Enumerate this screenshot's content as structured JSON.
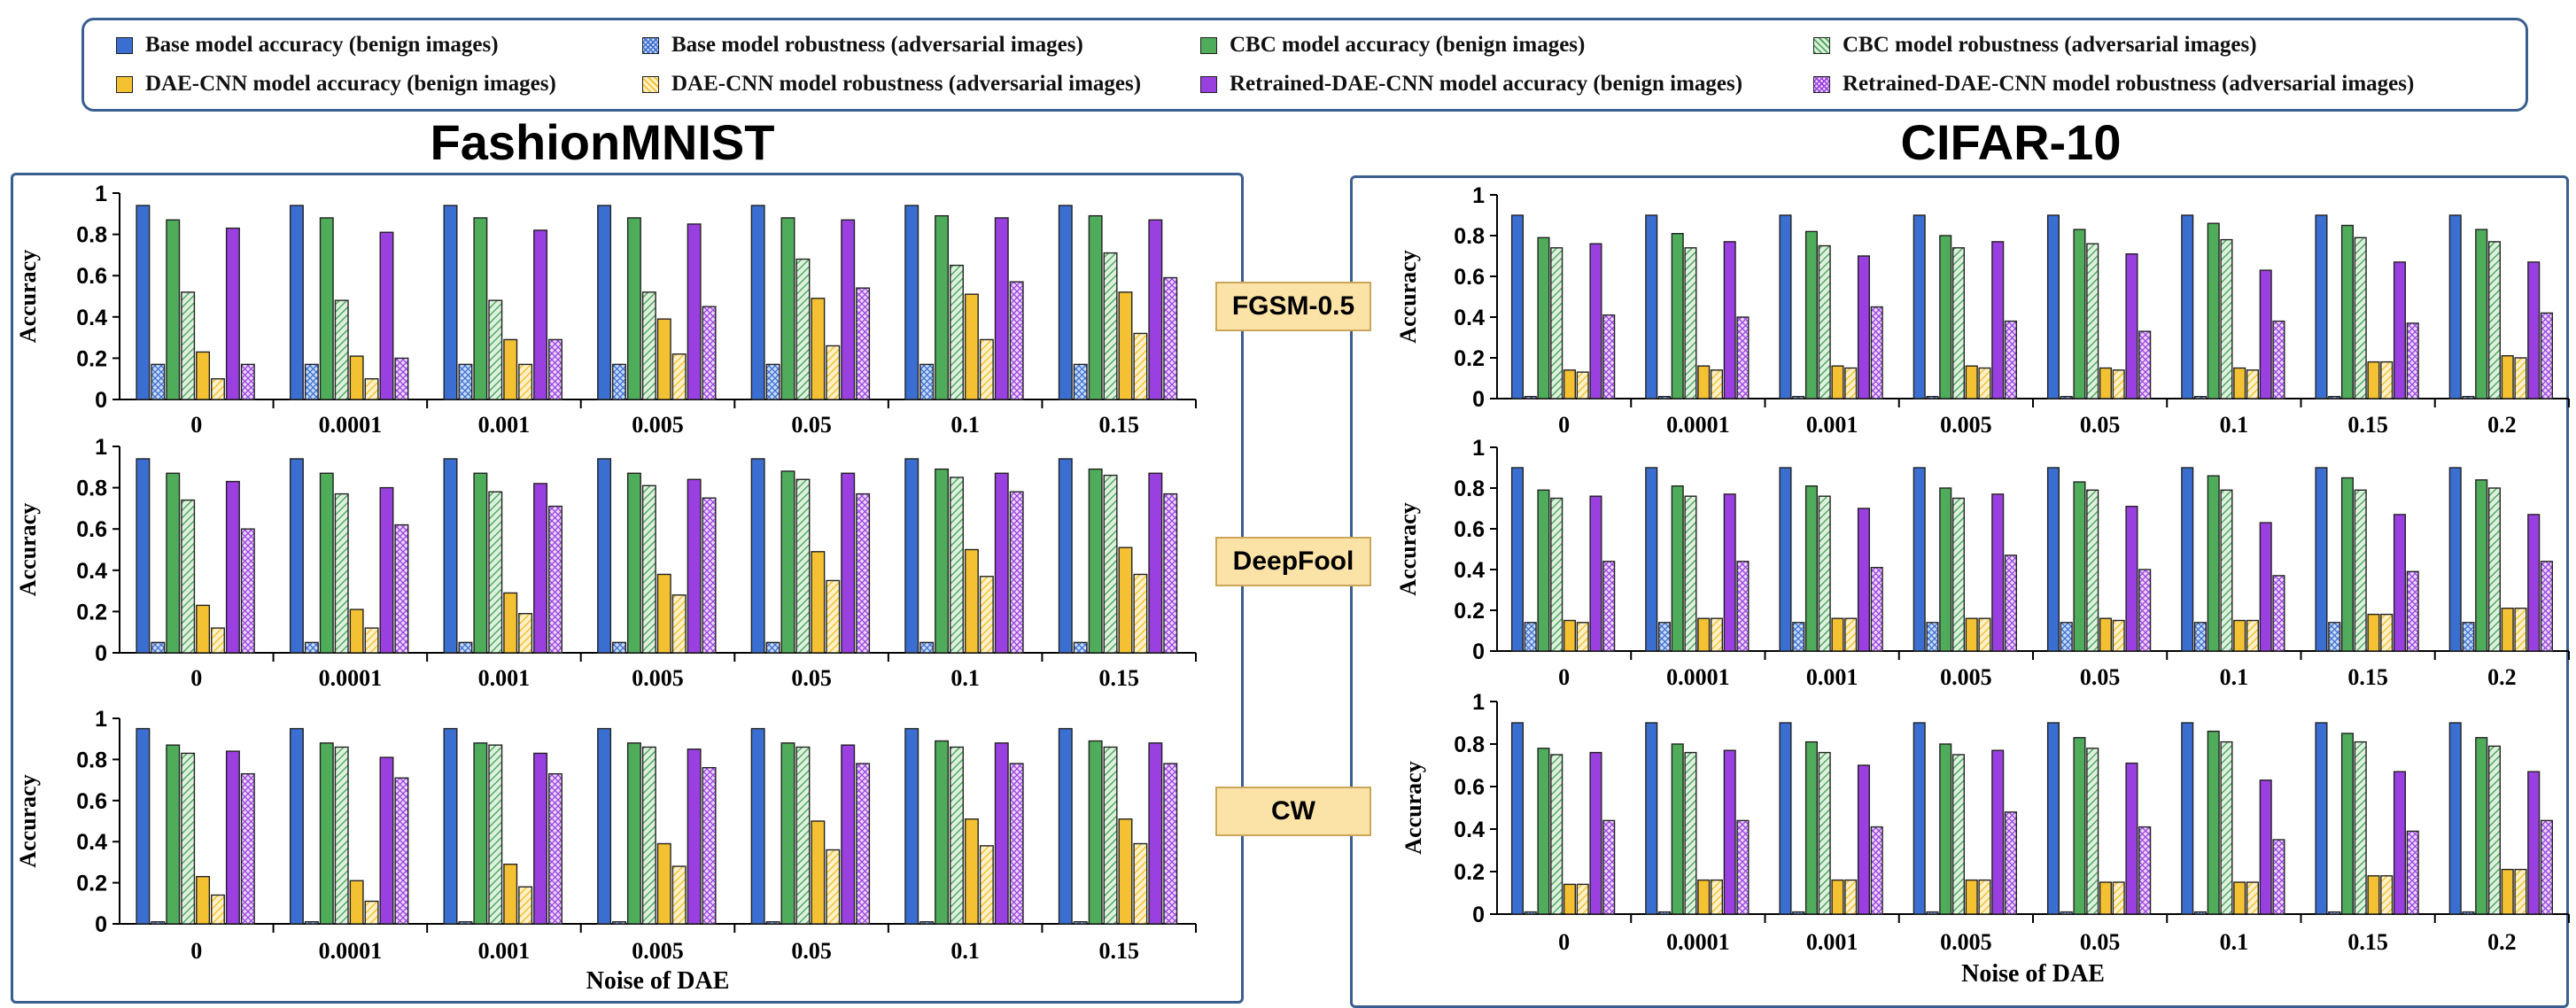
{
  "colors": {
    "base": "#3a6ed1",
    "cbc": "#4fac5b",
    "dae": "#f4c132",
    "retrained": "#9a3fe0",
    "panel_border": "#3a5f8f",
    "attack_bg": "#fbe3a7"
  },
  "legend": [
    {
      "label": "Base model accuracy (benign images)",
      "series": "base_acc",
      "color": "#3a6ed1",
      "pattern": "solid"
    },
    {
      "label": "Base model robustness (adversarial images)",
      "series": "base_rob",
      "color": "#3a6ed1",
      "pattern": "cross"
    },
    {
      "label": "CBC model accuracy (benign images)",
      "series": "cbc_acc",
      "color": "#4fac5b",
      "pattern": "solid"
    },
    {
      "label": "CBC model robustness (adversarial images)",
      "series": "cbc_rob",
      "color": "#4fac5b",
      "pattern": "diag"
    },
    {
      "label": "DAE-CNN model accuracy (benign images)",
      "series": "dae_acc",
      "color": "#f4c132",
      "pattern": "solid"
    },
    {
      "label": "DAE-CNN model robustness (adversarial images)",
      "series": "dae_rob",
      "color": "#f4c132",
      "pattern": "diag"
    },
    {
      "label": "Retrained-DAE-CNN model accuracy (benign images)",
      "series": "ret_acc",
      "color": "#9a3fe0",
      "pattern": "solid"
    },
    {
      "label": "Retrained-DAE-CNN model robustness (adversarial images)",
      "series": "ret_rob",
      "color": "#9a3fe0",
      "pattern": "cross"
    }
  ],
  "panels": {
    "left_title": "FashionMNIST",
    "right_title": "CIFAR-10"
  },
  "attacks": [
    "FGSM-0.5",
    "DeepFool",
    "CW"
  ],
  "chart_data": [
    {
      "type": "bar",
      "dataset": "FashionMNIST",
      "attack": "FGSM-0.5",
      "categories": [
        "0",
        "0.0001",
        "0.001",
        "0.005",
        "0.05",
        "0.1",
        "0.15"
      ],
      "ylabel": "Accuracy",
      "xlabel": "",
      "ylim": [
        0,
        1
      ],
      "yticks": [
        "0",
        "0.2",
        "0.4",
        "0.6",
        "0.8",
        "1"
      ],
      "series": [
        {
          "key": "base_acc",
          "values": [
            0.94,
            0.94,
            0.94,
            0.94,
            0.94,
            0.94,
            0.94
          ]
        },
        {
          "key": "base_rob",
          "values": [
            0.17,
            0.17,
            0.17,
            0.17,
            0.17,
            0.17,
            0.17
          ]
        },
        {
          "key": "cbc_acc",
          "values": [
            0.87,
            0.88,
            0.88,
            0.88,
            0.88,
            0.89,
            0.89
          ]
        },
        {
          "key": "cbc_rob",
          "values": [
            0.52,
            0.48,
            0.48,
            0.52,
            0.68,
            0.65,
            0.71
          ]
        },
        {
          "key": "dae_acc",
          "values": [
            0.23,
            0.21,
            0.29,
            0.39,
            0.49,
            0.51,
            0.52
          ]
        },
        {
          "key": "dae_rob",
          "values": [
            0.1,
            0.1,
            0.17,
            0.22,
            0.26,
            0.29,
            0.32
          ]
        },
        {
          "key": "ret_acc",
          "values": [
            0.83,
            0.81,
            0.82,
            0.85,
            0.87,
            0.88,
            0.87
          ]
        },
        {
          "key": "ret_rob",
          "values": [
            0.17,
            0.2,
            0.29,
            0.45,
            0.54,
            0.57,
            0.59
          ]
        }
      ]
    },
    {
      "type": "bar",
      "dataset": "FashionMNIST",
      "attack": "DeepFool",
      "categories": [
        "0",
        "0.0001",
        "0.001",
        "0.005",
        "0.05",
        "0.1",
        "0.15"
      ],
      "ylabel": "Accuracy",
      "xlabel": "",
      "ylim": [
        0,
        1
      ],
      "yticks": [
        "0",
        "0.2",
        "0.4",
        "0.6",
        "0.8",
        "1"
      ],
      "series": [
        {
          "key": "base_acc",
          "values": [
            0.94,
            0.94,
            0.94,
            0.94,
            0.94,
            0.94,
            0.94
          ]
        },
        {
          "key": "base_rob",
          "values": [
            0.05,
            0.05,
            0.05,
            0.05,
            0.05,
            0.05,
            0.05
          ]
        },
        {
          "key": "cbc_acc",
          "values": [
            0.87,
            0.87,
            0.87,
            0.87,
            0.88,
            0.89,
            0.89
          ]
        },
        {
          "key": "cbc_rob",
          "values": [
            0.74,
            0.77,
            0.78,
            0.81,
            0.84,
            0.85,
            0.86
          ]
        },
        {
          "key": "dae_acc",
          "values": [
            0.23,
            0.21,
            0.29,
            0.38,
            0.49,
            0.5,
            0.51
          ]
        },
        {
          "key": "dae_rob",
          "values": [
            0.12,
            0.12,
            0.19,
            0.28,
            0.35,
            0.37,
            0.38
          ]
        },
        {
          "key": "ret_acc",
          "values": [
            0.83,
            0.8,
            0.82,
            0.84,
            0.87,
            0.87,
            0.87
          ]
        },
        {
          "key": "ret_rob",
          "values": [
            0.6,
            0.62,
            0.71,
            0.75,
            0.77,
            0.78,
            0.77
          ]
        }
      ]
    },
    {
      "type": "bar",
      "dataset": "FashionMNIST",
      "attack": "CW",
      "categories": [
        "0",
        "0.0001",
        "0.001",
        "0.005",
        "0.05",
        "0.1",
        "0.15"
      ],
      "ylabel": "Accuracy",
      "xlabel": "Noise of DAE",
      "ylim": [
        0,
        1
      ],
      "yticks": [
        "0",
        "0.2",
        "0.4",
        "0.6",
        "0.8",
        "1"
      ],
      "series": [
        {
          "key": "base_acc",
          "values": [
            0.95,
            0.95,
            0.95,
            0.95,
            0.95,
            0.95,
            0.95
          ]
        },
        {
          "key": "base_rob",
          "values": [
            0.01,
            0.01,
            0.01,
            0.01,
            0.01,
            0.01,
            0.01
          ]
        },
        {
          "key": "cbc_acc",
          "values": [
            0.87,
            0.88,
            0.88,
            0.88,
            0.88,
            0.89,
            0.89
          ]
        },
        {
          "key": "cbc_rob",
          "values": [
            0.83,
            0.86,
            0.87,
            0.86,
            0.86,
            0.86,
            0.86
          ]
        },
        {
          "key": "dae_acc",
          "values": [
            0.23,
            0.21,
            0.29,
            0.39,
            0.5,
            0.51,
            0.51
          ]
        },
        {
          "key": "dae_rob",
          "values": [
            0.14,
            0.11,
            0.18,
            0.28,
            0.36,
            0.38,
            0.39
          ]
        },
        {
          "key": "ret_acc",
          "values": [
            0.84,
            0.81,
            0.83,
            0.85,
            0.87,
            0.88,
            0.88
          ]
        },
        {
          "key": "ret_rob",
          "values": [
            0.73,
            0.71,
            0.73,
            0.76,
            0.78,
            0.78,
            0.78
          ]
        }
      ]
    },
    {
      "type": "bar",
      "dataset": "CIFAR-10",
      "attack": "FGSM-0.5",
      "categories": [
        "0",
        "0.0001",
        "0.001",
        "0.005",
        "0.05",
        "0.1",
        "0.15",
        "0.2"
      ],
      "ylabel": "Accuracy",
      "xlabel": "",
      "ylim": [
        0,
        1
      ],
      "yticks": [
        "0",
        "0.2",
        "0.4",
        "0.6",
        "0.8",
        "1"
      ],
      "series": [
        {
          "key": "base_acc",
          "values": [
            0.9,
            0.9,
            0.9,
            0.9,
            0.9,
            0.9,
            0.9,
            0.9
          ]
        },
        {
          "key": "base_rob",
          "values": [
            0.01,
            0.01,
            0.01,
            0.01,
            0.01,
            0.01,
            0.01,
            0.01
          ]
        },
        {
          "key": "cbc_acc",
          "values": [
            0.79,
            0.81,
            0.82,
            0.8,
            0.83,
            0.86,
            0.85,
            0.83
          ]
        },
        {
          "key": "cbc_rob",
          "values": [
            0.74,
            0.74,
            0.75,
            0.74,
            0.76,
            0.78,
            0.79,
            0.77
          ]
        },
        {
          "key": "dae_acc",
          "values": [
            0.14,
            0.16,
            0.16,
            0.16,
            0.15,
            0.15,
            0.18,
            0.21
          ]
        },
        {
          "key": "dae_rob",
          "values": [
            0.13,
            0.14,
            0.15,
            0.15,
            0.14,
            0.14,
            0.18,
            0.2
          ]
        },
        {
          "key": "ret_acc",
          "values": [
            0.76,
            0.77,
            0.7,
            0.77,
            0.71,
            0.63,
            0.67,
            0.67
          ]
        },
        {
          "key": "ret_rob",
          "values": [
            0.41,
            0.4,
            0.45,
            0.38,
            0.33,
            0.38,
            0.37,
            0.42
          ]
        }
      ]
    },
    {
      "type": "bar",
      "dataset": "CIFAR-10",
      "attack": "DeepFool",
      "categories": [
        "0",
        "0.0001",
        "0.001",
        "0.005",
        "0.05",
        "0.1",
        "0.15",
        "0.2"
      ],
      "ylabel": "Accuracy",
      "xlabel": "",
      "ylim": [
        0,
        1
      ],
      "yticks": [
        "0",
        "0.2",
        "0.4",
        "0.6",
        "0.8",
        "1"
      ],
      "series": [
        {
          "key": "base_acc",
          "values": [
            0.9,
            0.9,
            0.9,
            0.9,
            0.9,
            0.9,
            0.9,
            0.9
          ]
        },
        {
          "key": "base_rob",
          "values": [
            0.14,
            0.14,
            0.14,
            0.14,
            0.14,
            0.14,
            0.14,
            0.14
          ]
        },
        {
          "key": "cbc_acc",
          "values": [
            0.79,
            0.81,
            0.81,
            0.8,
            0.83,
            0.86,
            0.85,
            0.84
          ]
        },
        {
          "key": "cbc_rob",
          "values": [
            0.75,
            0.76,
            0.76,
            0.75,
            0.79,
            0.79,
            0.79,
            0.8
          ]
        },
        {
          "key": "dae_acc",
          "values": [
            0.15,
            0.16,
            0.16,
            0.16,
            0.16,
            0.15,
            0.18,
            0.21
          ]
        },
        {
          "key": "dae_rob",
          "values": [
            0.14,
            0.16,
            0.16,
            0.16,
            0.15,
            0.15,
            0.18,
            0.21
          ]
        },
        {
          "key": "ret_acc",
          "values": [
            0.76,
            0.77,
            0.7,
            0.77,
            0.71,
            0.63,
            0.67,
            0.67
          ]
        },
        {
          "key": "ret_rob",
          "values": [
            0.44,
            0.44,
            0.41,
            0.47,
            0.4,
            0.37,
            0.39,
            0.44
          ]
        }
      ]
    },
    {
      "type": "bar",
      "dataset": "CIFAR-10",
      "attack": "CW",
      "categories": [
        "0",
        "0.0001",
        "0.001",
        "0.005",
        "0.05",
        "0.1",
        "0.15",
        "0.2"
      ],
      "ylabel": "Accuracy",
      "xlabel": "Noise of DAE",
      "ylim": [
        0,
        1
      ],
      "yticks": [
        "0",
        "0.2",
        "0.4",
        "0.6",
        "0.8",
        "1"
      ],
      "series": [
        {
          "key": "base_acc",
          "values": [
            0.9,
            0.9,
            0.9,
            0.9,
            0.9,
            0.9,
            0.9,
            0.9
          ]
        },
        {
          "key": "base_rob",
          "values": [
            0.01,
            0.01,
            0.01,
            0.01,
            0.01,
            0.01,
            0.01,
            0.01
          ]
        },
        {
          "key": "cbc_acc",
          "values": [
            0.78,
            0.8,
            0.81,
            0.8,
            0.83,
            0.86,
            0.85,
            0.83
          ]
        },
        {
          "key": "cbc_rob",
          "values": [
            0.75,
            0.76,
            0.76,
            0.75,
            0.78,
            0.81,
            0.81,
            0.79
          ]
        },
        {
          "key": "dae_acc",
          "values": [
            0.14,
            0.16,
            0.16,
            0.16,
            0.15,
            0.15,
            0.18,
            0.21
          ]
        },
        {
          "key": "dae_rob",
          "values": [
            0.14,
            0.16,
            0.16,
            0.16,
            0.15,
            0.15,
            0.18,
            0.21
          ]
        },
        {
          "key": "ret_acc",
          "values": [
            0.76,
            0.77,
            0.7,
            0.77,
            0.71,
            0.63,
            0.67,
            0.67
          ]
        },
        {
          "key": "ret_rob",
          "values": [
            0.44,
            0.44,
            0.41,
            0.48,
            0.41,
            0.35,
            0.39,
            0.44
          ]
        }
      ]
    }
  ]
}
